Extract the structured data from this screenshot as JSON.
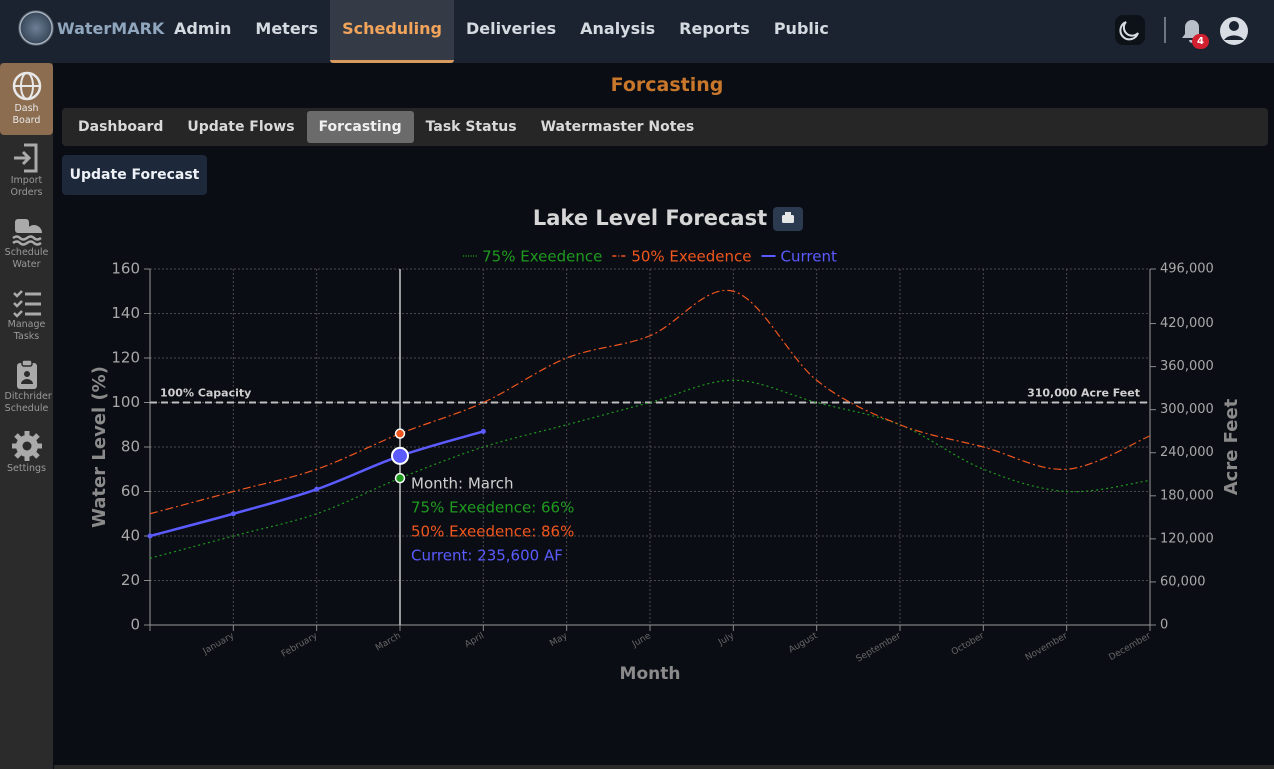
{
  "nav": {
    "brand": "WaterMARK",
    "items": [
      "Admin",
      "Meters",
      "Scheduling",
      "Deliveries",
      "Analysis",
      "Reports",
      "Public"
    ],
    "active": 2,
    "notifications": "4"
  },
  "sidebar": {
    "items": [
      "Dash Board",
      "Import Orders",
      "Schedule Water",
      "Manage Tasks",
      "Ditchrider Schedule",
      "Settings"
    ],
    "active": 0
  },
  "page_title": "Forcasting",
  "tabs": {
    "items": [
      "Dashboard",
      "Update Flows",
      "Forcasting",
      "Task Status",
      "Watermaster Notes"
    ],
    "active": 2
  },
  "button": "Update Forecast",
  "chart_data": {
    "type": "line",
    "title": "Lake Level Forecast",
    "xlabel": "Month",
    "ylabel": "Water Level (%)",
    "y2label": "Acre Feet",
    "categories": [
      null,
      "January",
      "February",
      "March",
      "April",
      "May",
      "June",
      "July",
      "August",
      "September",
      "October",
      "November",
      "December"
    ],
    "series": [
      {
        "name": "75% Exeedence",
        "color": "#1f9a1f",
        "dash": "2 3",
        "values": [
          30,
          40,
          50,
          66,
          80,
          90,
          100,
          110,
          100,
          90,
          70,
          60,
          65
        ]
      },
      {
        "name": "50% Exeedence",
        "color": "#f0561e",
        "dash": "8 3 2 3",
        "values": [
          50,
          60,
          70,
          86,
          100,
          120,
          130,
          150,
          110,
          90,
          80,
          70,
          85
        ]
      },
      {
        "name": "Current",
        "color": "#5b5bff",
        "dash": "",
        "values": [
          40,
          50,
          61,
          76,
          87,
          null,
          null,
          null,
          null,
          null,
          null,
          null,
          null
        ]
      }
    ],
    "ylim": [
      0,
      160
    ],
    "yticks": [
      0,
      20,
      40,
      60,
      80,
      100,
      120,
      140,
      160
    ],
    "y2lim": [
      0,
      496000
    ],
    "y2ticks": [
      0,
      {
        "value": 60000,
        "label": "60,000"
      },
      {
        "value": 120000,
        "label": "120,000"
      },
      {
        "value": 180000,
        "label": "180,000"
      },
      {
        "value": 240000,
        "label": "240,000"
      },
      {
        "value": 300000,
        "label": "300,000"
      },
      {
        "value": 360000,
        "label": "360,000"
      },
      {
        "value": 420000,
        "label": "420,000"
      },
      {
        "value": 496000,
        "label": "496,000"
      }
    ],
    "grid": true,
    "legend": "top",
    "reference_line": {
      "value": 100,
      "label": "100% Capacity",
      "label_right": "310,000 Acre Feet"
    },
    "tooltip": {
      "index": 3,
      "lines": [
        "Month: March",
        "75% Exeedence: 66%",
        "50% Exeedence: 86%",
        "Current: 235,600 AF"
      ]
    }
  }
}
